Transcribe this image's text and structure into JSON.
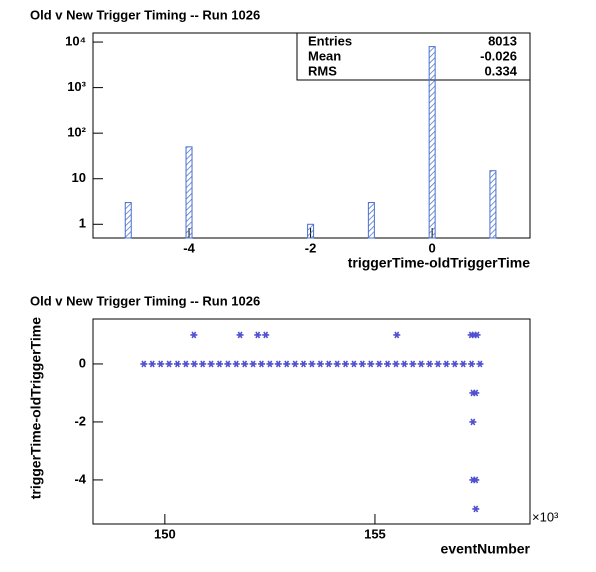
{
  "chart_data": [
    {
      "type": "histogram",
      "title": "Old v New Trigger Timing -- Run 1026",
      "x_label": "triggerTime-oldTriggerTime",
      "x": [
        -5,
        -4,
        -2,
        -1,
        0,
        1
      ],
      "values": [
        3,
        50,
        1,
        3,
        7941,
        15
      ],
      "color": "#4a6fd0",
      "log_y": true,
      "xlim": [
        -5.58,
        1.61
      ],
      "xticks": [
        -4,
        -2,
        0
      ],
      "ylim": [
        0.5,
        15800
      ],
      "yticks": [
        1,
        10,
        {
          "value": 100,
          "label": "10²"
        },
        {
          "value": 1000,
          "label": "10³"
        },
        {
          "value": 10000,
          "label": "10⁴"
        }
      ],
      "stats": [
        {
          "label": "Entries",
          "value": 8013
        },
        {
          "label": "Mean",
          "value": -0.026
        },
        {
          "label": "RMS",
          "value": 0.334
        }
      ]
    },
    {
      "type": "scatter",
      "title": "Old v New Trigger Timing -- Run 1026",
      "x_label": "eventNumber",
      "y_label": "triggerTime-oldTriggerTime",
      "x_multiplier": "×10³",
      "color": "#5050d0",
      "xlim": [
        148.29,
        158.69
      ],
      "xticks": [
        150,
        155
      ],
      "ylim": [
        -5.52,
        1.55
      ],
      "yticks": [
        -4,
        -2,
        0
      ],
      "series": [
        {
          "x": [
            149.5,
            149.7,
            149.9,
            150.1,
            150.3,
            150.5,
            150.7,
            150.9,
            151.1,
            151.3,
            151.5,
            151.7,
            151.9,
            152.1,
            152.3,
            152.5,
            152.7,
            152.9,
            153.1,
            153.3,
            153.5,
            153.7,
            153.9,
            154.1,
            154.3,
            154.5,
            154.7,
            154.9,
            155.1,
            155.3,
            155.5,
            155.7,
            155.9,
            156.1,
            156.3,
            156.5,
            156.7,
            156.9,
            157.1,
            157.3,
            157.5,
            150.69,
            151.79,
            152.21,
            152.4,
            155.52,
            157.29,
            157.36,
            157.43,
            157.33,
            157.4,
            157.33,
            157.33,
            157.4,
            157.4
          ],
          "y": [
            0,
            0,
            0,
            0,
            0,
            0,
            0,
            0,
            0,
            0,
            0,
            0,
            0,
            0,
            0,
            0,
            0,
            0,
            0,
            0,
            0,
            0,
            0,
            0,
            0,
            0,
            0,
            0,
            0,
            0,
            0,
            0,
            0,
            0,
            0,
            0,
            0,
            0,
            0,
            0,
            0,
            1,
            1,
            1,
            1,
            1,
            1,
            1,
            1,
            -1,
            -1,
            -2,
            -4,
            -4,
            -5
          ]
        }
      ]
    }
  ]
}
